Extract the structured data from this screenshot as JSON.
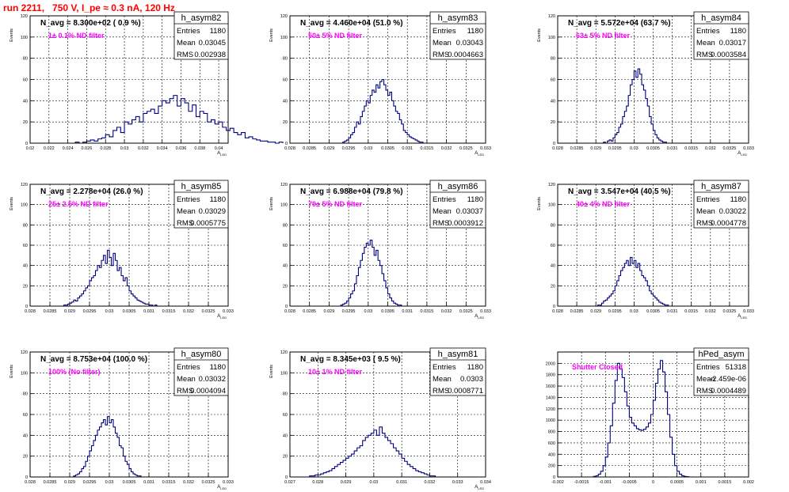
{
  "page": {
    "title": "run 2211,   750 V, I_pe ≈ 0.3 nA, 120 Hz"
  },
  "colors": {
    "hist": "#000080",
    "annotation": "#ff00ff",
    "title": "#ff0000",
    "grid": "#000000"
  },
  "chart_data": [
    {
      "type": "bar",
      "name": "h_asym82",
      "navg": "N_avg = 8.300e+02 ( 0.9 %)",
      "filter": "1± 0.1% ND filter",
      "stats": {
        "entries_label": "Entries",
        "entries": "1180",
        "mean_label": "Mean",
        "mean": "0.03045",
        "rms_label": "RMS",
        "rms": "0.002938"
      },
      "ylabel": "Events",
      "xlabel": "A_LED",
      "xlim": [
        0.02,
        0.041
      ],
      "ylim": [
        0,
        120
      ],
      "xticks": [
        0.02,
        0.022,
        0.024,
        0.026,
        0.028,
        0.03,
        0.032,
        0.034,
        0.036,
        0.038,
        0.04
      ],
      "xticklabels": [
        "0.02",
        "0.022",
        "0.024",
        "0.026",
        "0.028",
        "0.03",
        "0.032",
        "0.034",
        "0.036",
        "0.038",
        "0.04"
      ],
      "yticks": [
        0,
        20,
        40,
        60,
        80,
        100,
        120
      ],
      "bins": {
        "x0": 0.0248,
        "width": 0.0004,
        "values": [
          1,
          0,
          1,
          2,
          3,
          2,
          4,
          5,
          8,
          6,
          12,
          15,
          10,
          20,
          18,
          22,
          25,
          20,
          28,
          30,
          32,
          28,
          35,
          40,
          38,
          42,
          45,
          35,
          42,
          38,
          30,
          36,
          25,
          30,
          28,
          20,
          22,
          18,
          20,
          15,
          12,
          14,
          10,
          8,
          10,
          5,
          6,
          4,
          3,
          2,
          2,
          1,
          1,
          0,
          1
        ]
      }
    },
    {
      "type": "bar",
      "name": "h_asym83",
      "navg": "N_avg = 4.460e+04 (51.0 %)",
      "filter": "50± 5% ND filter",
      "stats": {
        "entries_label": "Entries",
        "entries": "1180",
        "mean_label": "Mean",
        "mean": "0.03043",
        "rms_label": "RMS",
        "rms": "0.0004663"
      },
      "ylabel": "Events",
      "xlabel": "A_LED",
      "xlim": [
        0.028,
        0.033
      ],
      "ylim": [
        0,
        120
      ],
      "xticks": [
        0.028,
        0.0285,
        0.029,
        0.0295,
        0.03,
        0.0305,
        0.031,
        0.0315,
        0.032,
        0.0325,
        0.033
      ],
      "xticklabels": [
        "0.028",
        "0.0285",
        "0.029",
        "0.0295",
        "0.03",
        "0.0305",
        "0.031",
        "0.0315",
        "0.032",
        "0.0325",
        "0.033"
      ],
      "yticks": [
        0,
        20,
        40,
        60,
        80,
        100,
        120
      ],
      "bins": {
        "x0": 0.02935,
        "width": 5e-05,
        "values": [
          1,
          2,
          3,
          5,
          8,
          10,
          15,
          20,
          18,
          25,
          30,
          35,
          40,
          38,
          45,
          50,
          48,
          55,
          52,
          58,
          60,
          55,
          50,
          45,
          48,
          40,
          35,
          30,
          28,
          22,
          18,
          12,
          10,
          8,
          6,
          5,
          4,
          3,
          2,
          1,
          1
        ]
      }
    },
    {
      "type": "bar",
      "name": "h_asym84",
      "navg": "N_avg = 5.572e+04 (63.7 %)",
      "filter": "63± 5% ND filter",
      "stats": {
        "entries_label": "Entries",
        "entries": "1180",
        "mean_label": "Mean",
        "mean": "0.03017",
        "rms_label": "RMS",
        "rms": "0.0003584"
      },
      "ylabel": "Events",
      "xlabel": "A_LED",
      "xlim": [
        0.028,
        0.033
      ],
      "ylim": [
        0,
        120
      ],
      "xticks": [
        0.028,
        0.0285,
        0.029,
        0.0295,
        0.03,
        0.0305,
        0.031,
        0.0315,
        0.032,
        0.0325,
        0.033
      ],
      "xticklabels": [
        "0.028",
        "0.0285",
        "0.029",
        "0.0295",
        "0.03",
        "0.0305",
        "0.031",
        "0.0315",
        "0.032",
        "0.0325",
        "0.033"
      ],
      "yticks": [
        0,
        20,
        40,
        60,
        80,
        100,
        120
      ],
      "bins": {
        "x0": 0.0292,
        "width": 5e-05,
        "values": [
          1,
          0,
          2,
          3,
          2,
          5,
          8,
          10,
          15,
          18,
          25,
          30,
          35,
          45,
          55,
          60,
          68,
          62,
          70,
          65,
          55,
          50,
          42,
          35,
          25,
          18,
          12,
          8,
          5,
          3,
          2,
          1,
          1
        ]
      }
    },
    {
      "type": "bar",
      "name": "h_asym85",
      "navg": "N_avg = 2.278e+04 (26.0 %)",
      "filter": "25± 2.5% ND filter",
      "stats": {
        "entries_label": "Entries",
        "entries": "1180",
        "mean_label": "Mean",
        "mean": "0.03029",
        "rms_label": "RMS",
        "rms": "0.0005775"
      },
      "ylabel": "Events",
      "xlabel": "A_LED",
      "xlim": [
        0.028,
        0.033
      ],
      "ylim": [
        0,
        120
      ],
      "xticks": [
        0.028,
        0.0285,
        0.029,
        0.0295,
        0.03,
        0.0305,
        0.031,
        0.0315,
        0.032,
        0.0325,
        0.033
      ],
      "xticklabels": [
        "0.028",
        "0.0285",
        "0.029",
        "0.0295",
        "0.03",
        "0.0305",
        "0.031",
        "0.0315",
        "0.032",
        "0.0325",
        "0.033"
      ],
      "yticks": [
        0,
        20,
        40,
        60,
        80,
        100,
        120
      ],
      "bins": {
        "x0": 0.02885,
        "width": 5e-05,
        "values": [
          1,
          1,
          2,
          3,
          4,
          6,
          5,
          8,
          10,
          12,
          15,
          18,
          20,
          25,
          28,
          30,
          35,
          40,
          38,
          45,
          50,
          42,
          55,
          48,
          40,
          52,
          45,
          35,
          38,
          30,
          25,
          28,
          20,
          15,
          12,
          10,
          8,
          6,
          5,
          4,
          3,
          2,
          2,
          1,
          1,
          0,
          1
        ]
      }
    },
    {
      "type": "bar",
      "name": "h_asym86",
      "navg": "N_avg = 6.988e+04 (79.8 %)",
      "filter": "79± 5% ND filter",
      "stats": {
        "entries_label": "Entries",
        "entries": "1180",
        "mean_label": "Mean",
        "mean": "0.03037",
        "rms_label": "RMS",
        "rms": "0.0003912"
      },
      "ylabel": "Events",
      "xlabel": "A_LED",
      "xlim": [
        0.028,
        0.033
      ],
      "ylim": [
        0,
        120
      ],
      "xticks": [
        0.028,
        0.0285,
        0.029,
        0.0295,
        0.03,
        0.0305,
        0.031,
        0.0315,
        0.032,
        0.0325,
        0.033
      ],
      "xticklabels": [
        "0.028",
        "0.0285",
        "0.029",
        "0.0295",
        "0.03",
        "0.0305",
        "0.031",
        "0.0315",
        "0.032",
        "0.0325",
        "0.033"
      ],
      "yticks": [
        0,
        20,
        40,
        60,
        80,
        100,
        120
      ],
      "bins": {
        "x0": 0.0293,
        "width": 5e-05,
        "values": [
          1,
          2,
          3,
          5,
          8,
          12,
          15,
          22,
          30,
          38,
          45,
          52,
          58,
          62,
          60,
          65,
          58,
          50,
          55,
          45,
          40,
          32,
          25,
          18,
          12,
          8,
          5,
          3,
          2,
          1,
          1
        ]
      }
    },
    {
      "type": "bar",
      "name": "h_asym87",
      "navg": "N_avg = 3.547e+04 (40.5 %)",
      "filter": "40± 4% ND filter",
      "stats": {
        "entries_label": "Entries",
        "entries": "1180",
        "mean_label": "Mean",
        "mean": "0.03022",
        "rms_label": "RMS",
        "rms": "0.0004778"
      },
      "ylabel": "Events",
      "xlabel": "A_LED",
      "xlim": [
        0.028,
        0.033
      ],
      "ylim": [
        0,
        120
      ],
      "xticks": [
        0.028,
        0.0285,
        0.029,
        0.0295,
        0.03,
        0.0305,
        0.031,
        0.0315,
        0.032,
        0.0325,
        0.033
      ],
      "xticklabels": [
        "0.028",
        "0.0285",
        "0.029",
        "0.0295",
        "0.03",
        "0.0305",
        "0.031",
        "0.0315",
        "0.032",
        "0.0325",
        "0.033"
      ],
      "yticks": [
        0,
        20,
        40,
        60,
        80,
        100,
        120
      ],
      "bins": {
        "x0": 0.02905,
        "width": 5e-05,
        "values": [
          1,
          1,
          3,
          5,
          6,
          8,
          10,
          12,
          15,
          20,
          25,
          30,
          35,
          38,
          42,
          45,
          40,
          48,
          42,
          45,
          38,
          42,
          35,
          30,
          28,
          25,
          20,
          15,
          12,
          10,
          8,
          6,
          4,
          3,
          2,
          1,
          1
        ]
      }
    },
    {
      "type": "bar",
      "name": "h_asym80",
      "navg": "N_avg = 8.753e+04 (100.0 %)",
      "filter": "100% (No filter)",
      "stats": {
        "entries_label": "Entries",
        "entries": "1180",
        "mean_label": "Mean",
        "mean": "0.03032",
        "rms_label": "RMS",
        "rms": "0.0004094"
      },
      "ylabel": "Events",
      "xlabel": "A_LED",
      "xlim": [
        0.028,
        0.033
      ],
      "ylim": [
        0,
        120
      ],
      "xticks": [
        0.028,
        0.0285,
        0.029,
        0.0295,
        0.03,
        0.0305,
        0.031,
        0.0315,
        0.032,
        0.0325,
        0.033
      ],
      "xticklabels": [
        "0.028",
        "0.0285",
        "0.029",
        "0.0295",
        "0.03",
        "0.0305",
        "0.031",
        "0.0315",
        "0.032",
        "0.0325",
        "0.033"
      ],
      "yticks": [
        0,
        20,
        40,
        60,
        80,
        100,
        120
      ],
      "bins": {
        "x0": 0.0291,
        "width": 5e-05,
        "values": [
          1,
          2,
          3,
          5,
          8,
          10,
          15,
          20,
          25,
          30,
          35,
          40,
          45,
          48,
          52,
          55,
          50,
          58,
          52,
          55,
          48,
          42,
          38,
          30,
          28,
          20,
          15,
          12,
          8,
          5,
          3,
          2,
          1,
          1
        ]
      }
    },
    {
      "type": "bar",
      "name": "h_asym81",
      "navg": "N_avg = 8.345e+03 ( 9.5 %)",
      "filter": "10± 1% ND filter",
      "stats": {
        "entries_label": "Entries",
        "entries": "1180",
        "mean_label": "Mean",
        "mean": "0.0303",
        "rms_label": "RMS",
        "rms": "0.0008771"
      },
      "ylabel": "Events",
      "xlabel": "A_LED",
      "xlim": [
        0.027,
        0.034
      ],
      "ylim": [
        0,
        120
      ],
      "xticks": [
        0.027,
        0.028,
        0.029,
        0.03,
        0.031,
        0.032,
        0.033,
        0.034
      ],
      "xticklabels": [
        "0.027",
        "0.028",
        "0.029",
        "0.03",
        "0.031",
        "0.032",
        "0.033",
        "0.034"
      ],
      "yticks": [
        0,
        20,
        40,
        60,
        80,
        100,
        120
      ],
      "bins": {
        "x0": 0.0277,
        "width": 0.0001,
        "values": [
          1,
          1,
          2,
          2,
          3,
          4,
          5,
          6,
          8,
          10,
          12,
          14,
          16,
          18,
          20,
          22,
          25,
          28,
          30,
          35,
          38,
          40,
          42,
          45,
          40,
          48,
          42,
          38,
          35,
          32,
          28,
          25,
          22,
          18,
          15,
          12,
          10,
          8,
          6,
          5,
          4,
          3,
          2,
          1,
          1
        ]
      }
    },
    {
      "type": "bar",
      "name": "hPed_asym",
      "navg": "",
      "filter": "Shutter Closed",
      "stats": {
        "entries_label": "Entries",
        "entries": "51318",
        "mean_label": "Mean",
        "mean": "-2.459e-06",
        "rms_label": "RMS",
        "rms": "0.0004489"
      },
      "ylabel": "",
      "xlabel": "",
      "xlim": [
        -0.002,
        0.002
      ],
      "ylim": [
        0,
        2200
      ],
      "xticks": [
        -0.002,
        -0.0015,
        -0.001,
        -0.0005,
        0,
        0.0005,
        0.001,
        0.0015,
        0.002
      ],
      "xticklabels": [
        "-0.002",
        "-0.0015",
        "-0.001",
        "-0.0005",
        "0",
        "0.0005",
        "0.001",
        "0.0015",
        "0.002"
      ],
      "yticks": [
        0,
        200,
        400,
        600,
        800,
        1000,
        1200,
        1400,
        1600,
        1800,
        2000
      ],
      "bins": {
        "x0": -0.00125,
        "width": 5e-05,
        "values": [
          10,
          20,
          50,
          100,
          200,
          350,
          600,
          900,
          1300,
          1700,
          2000,
          1900,
          1750,
          1500,
          1250,
          1050,
          950,
          900,
          850,
          830,
          820,
          840,
          880,
          950,
          1100,
          1350,
          1650,
          1900,
          2050,
          1850,
          1500,
          1100,
          700,
          400,
          200,
          100,
          50,
          20,
          10,
          5
        ]
      }
    }
  ]
}
